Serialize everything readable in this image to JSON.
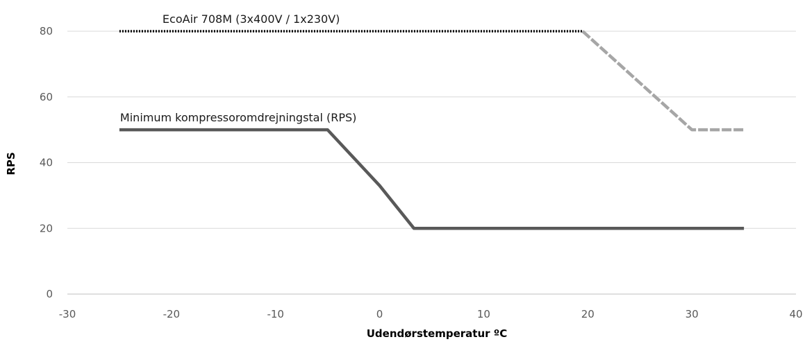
{
  "chart_data": {
    "type": "line",
    "title": "",
    "xlabel": "Udendørstemperatur ºC",
    "ylabel": "RPS",
    "xlim": [
      -30,
      40
    ],
    "ylim": [
      0,
      80
    ],
    "x_ticks": [
      -30,
      -20,
      -10,
      0,
      10,
      20,
      30,
      40
    ],
    "y_ticks": [
      0,
      20,
      40,
      60,
      80
    ],
    "grid": "horizontal",
    "legend": "none",
    "series": [
      {
        "name": "EcoAir 708M (3x400V / 1x230V)",
        "color": "#000000",
        "style": "dotted",
        "points": [
          [
            -25,
            80
          ],
          [
            19.5,
            80
          ]
        ]
      },
      {
        "name": "",
        "color": "#a6a6a6",
        "style": "dashed",
        "points": [
          [
            19.5,
            80
          ],
          [
            30,
            50
          ],
          [
            35,
            50
          ]
        ]
      },
      {
        "name": "Minimum kompressoromdrejningstal (RPS)",
        "color": "#595959",
        "style": "solid",
        "points": [
          [
            -25,
            50
          ],
          [
            -5,
            50
          ],
          [
            0,
            33
          ],
          [
            3.3,
            20
          ],
          [
            35,
            20
          ]
        ]
      }
    ]
  }
}
